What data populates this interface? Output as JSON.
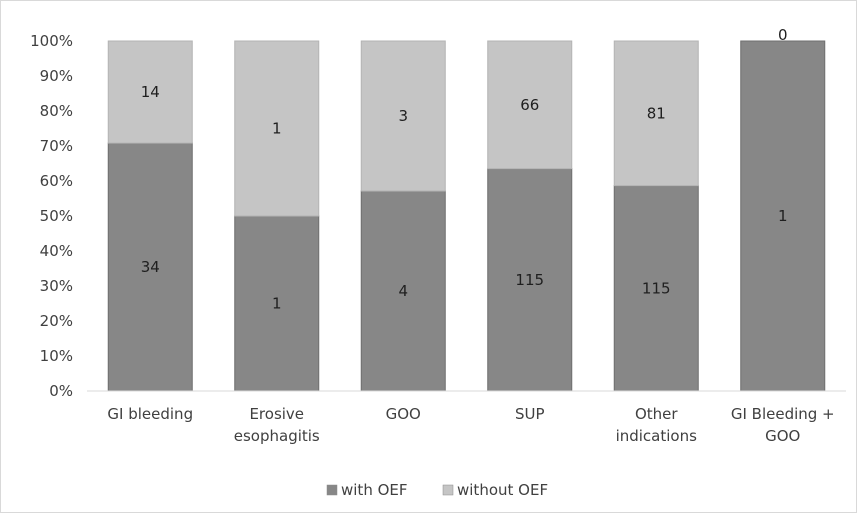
{
  "chart_data": {
    "type": "bar",
    "stacked": "percent",
    "categories": [
      [
        "GI bleeding"
      ],
      [
        "Erosive",
        "esophagitis"
      ],
      [
        "GOO"
      ],
      [
        "SUP"
      ],
      [
        "Other",
        "indications"
      ],
      [
        "GI Bleeding +",
        "GOO"
      ]
    ],
    "series": [
      {
        "name": "with OEF",
        "values": [
          34,
          1,
          4,
          115,
          115,
          1
        ],
        "color": "#878787"
      },
      {
        "name": "without OEF",
        "values": [
          14,
          1,
          3,
          66,
          81,
          0
        ],
        "color": "#c5c5c5"
      }
    ],
    "y_ticks": [
      "0%",
      "10%",
      "20%",
      "30%",
      "40%",
      "50%",
      "60%",
      "70%",
      "80%",
      "90%",
      "100%"
    ],
    "ylim": [
      0,
      100
    ],
    "legend_position": "bottom",
    "grid": false
  }
}
